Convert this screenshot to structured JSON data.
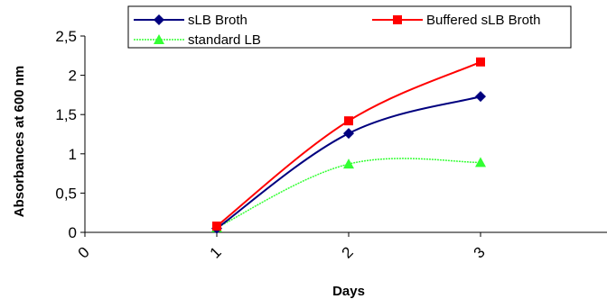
{
  "chart_data": {
    "type": "line",
    "title": "",
    "xlabel": "Days",
    "ylabel": "Absorbances at 600 nm",
    "x_ticks": [
      "0",
      "1",
      "2",
      "3",
      "4"
    ],
    "y_ticks": [
      "0",
      "0,5",
      "1",
      "1,5",
      "2",
      "2,5"
    ],
    "xlim": [
      0,
      4
    ],
    "ylim": [
      0,
      2.5
    ],
    "x": [
      1,
      2,
      3
    ],
    "legend_position": "top",
    "grid": false,
    "series": [
      {
        "name": "sLB Broth",
        "color": "#00007f",
        "marker": "diamond",
        "values": [
          0.05,
          1.26,
          1.73
        ]
      },
      {
        "name": "Buffered sLB Broth",
        "color": "#ff0000",
        "marker": "square",
        "values": [
          0.08,
          1.42,
          2.17
        ]
      },
      {
        "name": "standard LB",
        "color": "#33ff33",
        "marker": "triangle",
        "values": [
          0.06,
          0.87,
          0.89
        ]
      }
    ]
  }
}
